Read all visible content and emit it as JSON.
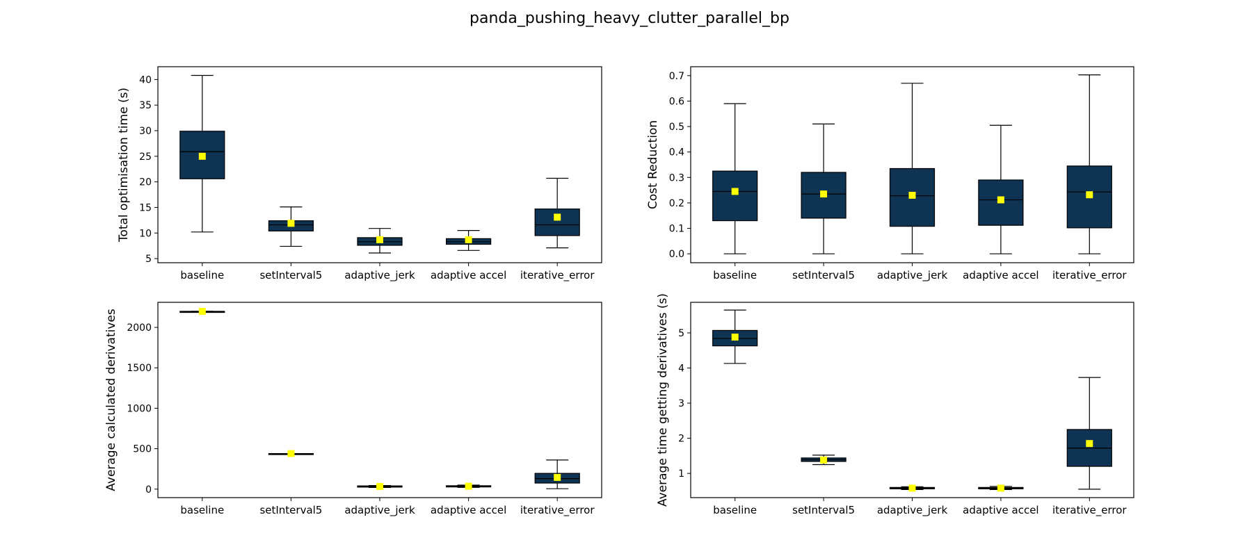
{
  "figure": {
    "title": "panda_pushing_heavy_clutter_parallel_bp"
  },
  "style": {
    "box_fill": "#0f3352",
    "box_edge": "#000000",
    "mean_marker": "#ffff00",
    "whisker": "#000000"
  },
  "chart_data": [
    {
      "type": "box",
      "id": "optimisation-time",
      "xlabel": "",
      "ylabel": "Total optimisation time (s)",
      "ylim": [
        4.2,
        42.5
      ],
      "yticks": [
        "5",
        "10",
        "15",
        "20",
        "25",
        "30",
        "35",
        "40"
      ],
      "yticks_vals": [
        5,
        10,
        15,
        20,
        25,
        30,
        35,
        40
      ],
      "categories": [
        "baseline",
        "setInterval5",
        "adaptive_jerk",
        "adaptive accel",
        "iterative_error"
      ],
      "boxes": [
        {
          "min": 10.2,
          "q1": 20.6,
          "median": 25.9,
          "q3": 29.9,
          "max": 40.8,
          "mean": 25.0
        },
        {
          "min": 7.4,
          "q1": 10.4,
          "median": 11.6,
          "q3": 12.4,
          "max": 15.1,
          "mean": 11.9
        },
        {
          "min": 6.1,
          "q1": 7.6,
          "median": 8.3,
          "q3": 9.1,
          "max": 10.9,
          "mean": 8.7
        },
        {
          "min": 6.6,
          "q1": 7.8,
          "median": 8.3,
          "q3": 8.9,
          "max": 10.5,
          "mean": 8.7
        },
        {
          "min": 7.1,
          "q1": 9.5,
          "median": 11.6,
          "q3": 14.7,
          "max": 20.7,
          "mean": 13.1
        }
      ]
    },
    {
      "type": "box",
      "id": "cost-reduction",
      "xlabel": "",
      "ylabel": "Cost Reduction",
      "ylim": [
        -0.035,
        0.735
      ],
      "yticks": [
        "0.0",
        "0.1",
        "0.2",
        "0.3",
        "0.4",
        "0.5",
        "0.6",
        "0.7"
      ],
      "yticks_vals": [
        0.0,
        0.1,
        0.2,
        0.3,
        0.4,
        0.5,
        0.6,
        0.7
      ],
      "categories": [
        "baseline",
        "setInterval5",
        "adaptive_jerk",
        "adaptive accel",
        "iterative_error"
      ],
      "boxes": [
        {
          "min": 0.0,
          "q1": 0.13,
          "median": 0.245,
          "q3": 0.325,
          "max": 0.59,
          "mean": 0.245
        },
        {
          "min": 0.0,
          "q1": 0.14,
          "median": 0.235,
          "q3": 0.32,
          "max": 0.51,
          "mean": 0.235
        },
        {
          "min": 0.0,
          "q1": 0.108,
          "median": 0.228,
          "q3": 0.335,
          "max": 0.67,
          "mean": 0.23
        },
        {
          "min": 0.0,
          "q1": 0.112,
          "median": 0.212,
          "q3": 0.29,
          "max": 0.505,
          "mean": 0.212
        },
        {
          "min": 0.0,
          "q1": 0.102,
          "median": 0.243,
          "q3": 0.345,
          "max": 0.703,
          "mean": 0.232
        }
      ]
    },
    {
      "type": "box",
      "id": "calculated-derivatives",
      "xlabel": "",
      "ylabel": "Average calculated derivatives",
      "ylim": [
        -105,
        2310
      ],
      "yticks": [
        "0",
        "500",
        "1000",
        "1500",
        "2000"
      ],
      "yticks_vals": [
        0,
        500,
        1000,
        1500,
        2000
      ],
      "categories": [
        "baseline",
        "setInterval5",
        "adaptive_jerk",
        "adaptive accel",
        "iterative_error"
      ],
      "boxes": [
        {
          "min": 2198,
          "q1": 2198,
          "median": 2198,
          "q3": 2198,
          "max": 2198,
          "mean": 2198
        },
        {
          "min": 440,
          "q1": 440,
          "median": 440,
          "q3": 440,
          "max": 440,
          "mean": 440
        },
        {
          "min": 20,
          "q1": 25,
          "median": 32,
          "q3": 40,
          "max": 45,
          "mean": 33
        },
        {
          "min": 22,
          "q1": 27,
          "median": 35,
          "q3": 42,
          "max": 50,
          "mean": 36
        },
        {
          "min": 5,
          "q1": 75,
          "median": 130,
          "q3": 195,
          "max": 360,
          "mean": 145
        }
      ]
    },
    {
      "type": "box",
      "id": "time-getting-derivatives",
      "xlabel": "",
      "ylabel": "Average time getting derivatives (s)",
      "ylim": [
        0.31,
        5.87
      ],
      "yticks": [
        "1",
        "2",
        "3",
        "4",
        "5"
      ],
      "yticks_vals": [
        1,
        2,
        3,
        4,
        5
      ],
      "categories": [
        "baseline",
        "setInterval5",
        "adaptive_jerk",
        "adaptive accel",
        "iterative_error"
      ],
      "boxes": [
        {
          "min": 4.13,
          "q1": 4.63,
          "median": 4.84,
          "q3": 5.07,
          "max": 5.65,
          "mean": 4.88
        },
        {
          "min": 1.25,
          "q1": 1.34,
          "median": 1.39,
          "q3": 1.44,
          "max": 1.52,
          "mean": 1.38
        },
        {
          "min": 0.54,
          "q1": 0.56,
          "median": 0.58,
          "q3": 0.6,
          "max": 0.62,
          "mean": 0.58
        },
        {
          "min": 0.54,
          "q1": 0.56,
          "median": 0.58,
          "q3": 0.6,
          "max": 0.63,
          "mean": 0.58
        },
        {
          "min": 0.55,
          "q1": 1.2,
          "median": 1.72,
          "q3": 2.25,
          "max": 3.73,
          "mean": 1.85
        }
      ]
    }
  ]
}
